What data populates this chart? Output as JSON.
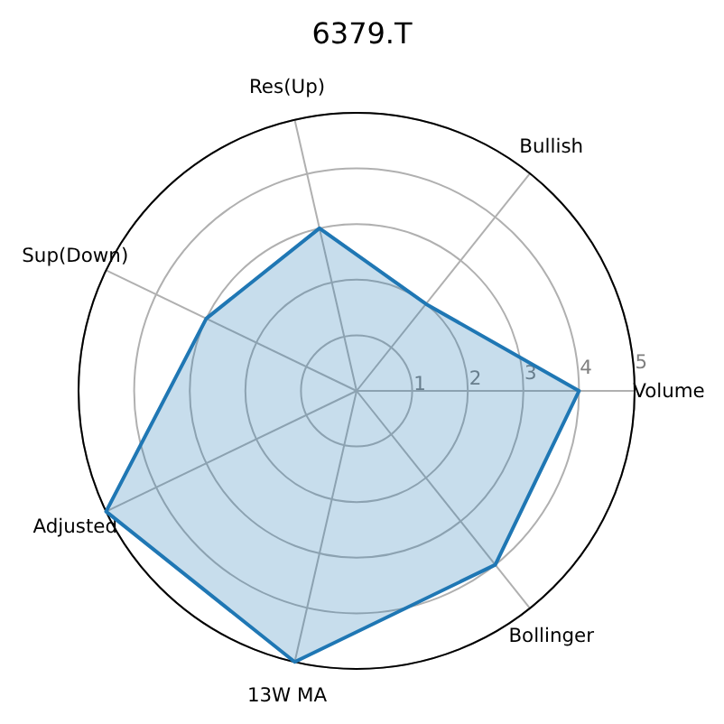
{
  "chart_data": {
    "type": "radar",
    "title": "6379.T",
    "categories": [
      "Res(Up)",
      "Bullish",
      "Volume",
      "Bollinger",
      "13W MA",
      "Adjusted",
      "Sup(Down)"
    ],
    "series": [
      {
        "color": "#1f77b4",
        "values": [
          3,
          2,
          4,
          4,
          5,
          5,
          3
        ]
      }
    ],
    "ylim": [
      0,
      5
    ],
    "yticks": [
      1,
      2,
      3,
      4,
      5
    ],
    "grid": true
  }
}
